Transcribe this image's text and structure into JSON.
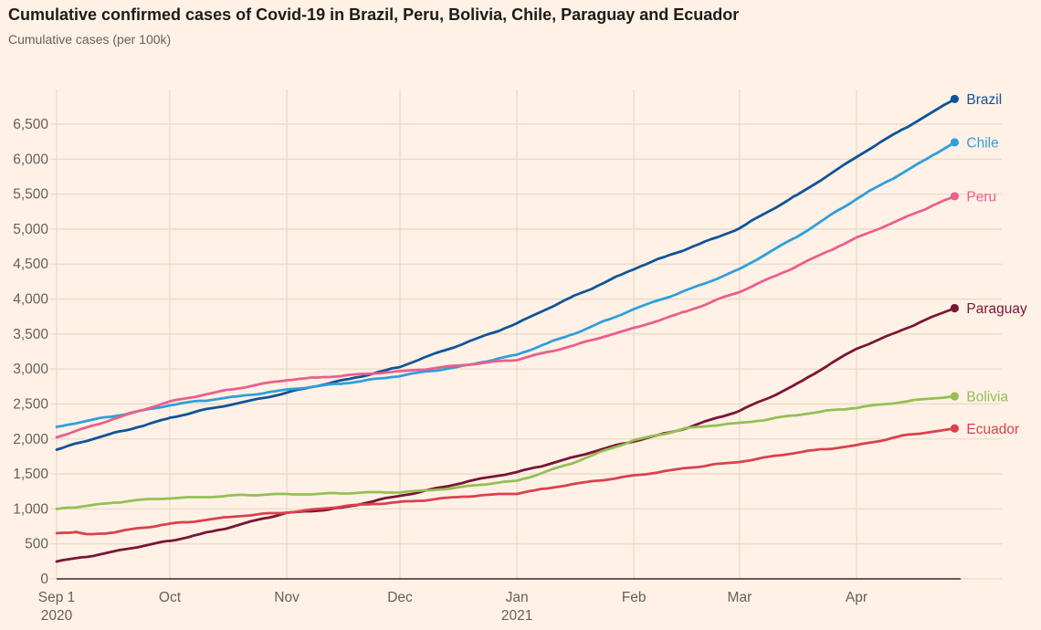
{
  "header": {
    "title": "Cumulative confirmed cases of Covid-19 in Brazil, Peru, Bolivia, Chile, Paraguay and Ecuador",
    "subtitle": "Cumulative cases (per 100k)"
  },
  "colors": {
    "background": "#FFF1E5",
    "gridline": "#EADACA",
    "axis_line": "#33302E",
    "tick_text": "#66605C",
    "title_text": "#1E1B19",
    "subtitle_text": "#66605C"
  },
  "chart_data": {
    "type": "line",
    "title": "Cumulative confirmed cases of Covid-19 in Brazil, Peru, Bolivia, Chile, Paraguay and Ecuador",
    "subtitle": "Cumulative cases (per 100k)",
    "xlabel": "",
    "ylabel": "Cumulative cases (per 100k)",
    "x_unit": "days since 1 Sep 2020",
    "xlim": [
      0,
      239.6
    ],
    "ylim": [
      0,
      6500
    ],
    "grid": true,
    "legend_position": "end-of-line-labels",
    "x_ticks": [
      {
        "day": 0,
        "label": "Sep 1",
        "sublabel": "2020"
      },
      {
        "day": 30,
        "label": "Oct",
        "sublabel": ""
      },
      {
        "day": 61,
        "label": "Nov",
        "sublabel": ""
      },
      {
        "day": 91,
        "label": "Dec",
        "sublabel": ""
      },
      {
        "day": 122,
        "label": "Jan",
        "sublabel": "2021"
      },
      {
        "day": 153,
        "label": "Feb",
        "sublabel": ""
      },
      {
        "day": 181,
        "label": "Mar",
        "sublabel": ""
      },
      {
        "day": 212,
        "label": "Apr",
        "sublabel": ""
      }
    ],
    "y_tick_values": [
      0,
      500,
      1000,
      1500,
      2000,
      2500,
      3000,
      3500,
      4000,
      4500,
      5000,
      5500,
      6000,
      6500
    ],
    "y_tick_labels": [
      "0",
      "500",
      "1,000",
      "1,500",
      "2,000",
      "2,500",
      "3,000",
      "3,500",
      "4,000",
      "4,500",
      "5,000",
      "5,500",
      "6,000",
      "6,500"
    ],
    "series": [
      {
        "name": "Brazil",
        "color": "#0F5499",
        "points": [
          [
            0,
            1850
          ],
          [
            15,
            2080
          ],
          [
            30,
            2300
          ],
          [
            45,
            2480
          ],
          [
            61,
            2660
          ],
          [
            76,
            2840
          ],
          [
            91,
            3030
          ],
          [
            106,
            3330
          ],
          [
            122,
            3650
          ],
          [
            137,
            4040
          ],
          [
            153,
            4430
          ],
          [
            167,
            4720
          ],
          [
            181,
            5010
          ],
          [
            196,
            5480
          ],
          [
            212,
            6030
          ],
          [
            224,
            6420
          ],
          [
            238,
            6860
          ]
        ]
      },
      {
        "name": "Chile",
        "color": "#2E9FDB",
        "points": [
          [
            0,
            2170
          ],
          [
            15,
            2330
          ],
          [
            30,
            2480
          ],
          [
            45,
            2590
          ],
          [
            61,
            2700
          ],
          [
            76,
            2800
          ],
          [
            91,
            2900
          ],
          [
            106,
            3030
          ],
          [
            122,
            3200
          ],
          [
            137,
            3510
          ],
          [
            153,
            3850
          ],
          [
            167,
            4130
          ],
          [
            181,
            4420
          ],
          [
            196,
            4890
          ],
          [
            212,
            5430
          ],
          [
            224,
            5800
          ],
          [
            238,
            6240
          ]
        ]
      },
      {
        "name": "Peru",
        "color": "#EB5E8D",
        "points": [
          [
            0,
            2020
          ],
          [
            15,
            2290
          ],
          [
            30,
            2530
          ],
          [
            45,
            2700
          ],
          [
            61,
            2840
          ],
          [
            76,
            2910
          ],
          [
            91,
            2960
          ],
          [
            106,
            3050
          ],
          [
            122,
            3130
          ],
          [
            137,
            3340
          ],
          [
            153,
            3580
          ],
          [
            167,
            3830
          ],
          [
            181,
            4100
          ],
          [
            196,
            4470
          ],
          [
            212,
            4870
          ],
          [
            224,
            5150
          ],
          [
            238,
            5470
          ]
        ]
      },
      {
        "name": "Paraguay",
        "color": "#7A1535",
        "points": [
          [
            0,
            250
          ],
          [
            15,
            390
          ],
          [
            30,
            540
          ],
          [
            45,
            730
          ],
          [
            61,
            940
          ],
          [
            76,
            1020
          ],
          [
            91,
            1185
          ],
          [
            106,
            1360
          ],
          [
            122,
            1525
          ],
          [
            137,
            1740
          ],
          [
            153,
            1970
          ],
          [
            167,
            2160
          ],
          [
            181,
            2400
          ],
          [
            196,
            2780
          ],
          [
            212,
            3290
          ],
          [
            224,
            3560
          ],
          [
            238,
            3870
          ]
        ]
      },
      {
        "name": "Bolivia",
        "color": "#94BF54",
        "points": [
          [
            0,
            1000
          ],
          [
            15,
            1090
          ],
          [
            30,
            1155
          ],
          [
            45,
            1185
          ],
          [
            61,
            1210
          ],
          [
            76,
            1225
          ],
          [
            91,
            1240
          ],
          [
            106,
            1300
          ],
          [
            122,
            1405
          ],
          [
            137,
            1660
          ],
          [
            153,
            1985
          ],
          [
            167,
            2150
          ],
          [
            181,
            2230
          ],
          [
            196,
            2340
          ],
          [
            212,
            2450
          ],
          [
            224,
            2530
          ],
          [
            238,
            2610
          ]
        ]
      },
      {
        "name": "Ecuador",
        "color": "#DA414E",
        "points": [
          [
            0,
            655
          ],
          [
            5,
            670
          ],
          [
            8,
            635
          ],
          [
            15,
            660
          ],
          [
            30,
            790
          ],
          [
            45,
            875
          ],
          [
            61,
            957
          ],
          [
            76,
            1035
          ],
          [
            91,
            1100
          ],
          [
            106,
            1165
          ],
          [
            122,
            1227
          ],
          [
            137,
            1350
          ],
          [
            153,
            1480
          ],
          [
            167,
            1580
          ],
          [
            181,
            1680
          ],
          [
            196,
            1800
          ],
          [
            212,
            1913
          ],
          [
            224,
            2040
          ],
          [
            238,
            2150
          ]
        ]
      }
    ]
  }
}
